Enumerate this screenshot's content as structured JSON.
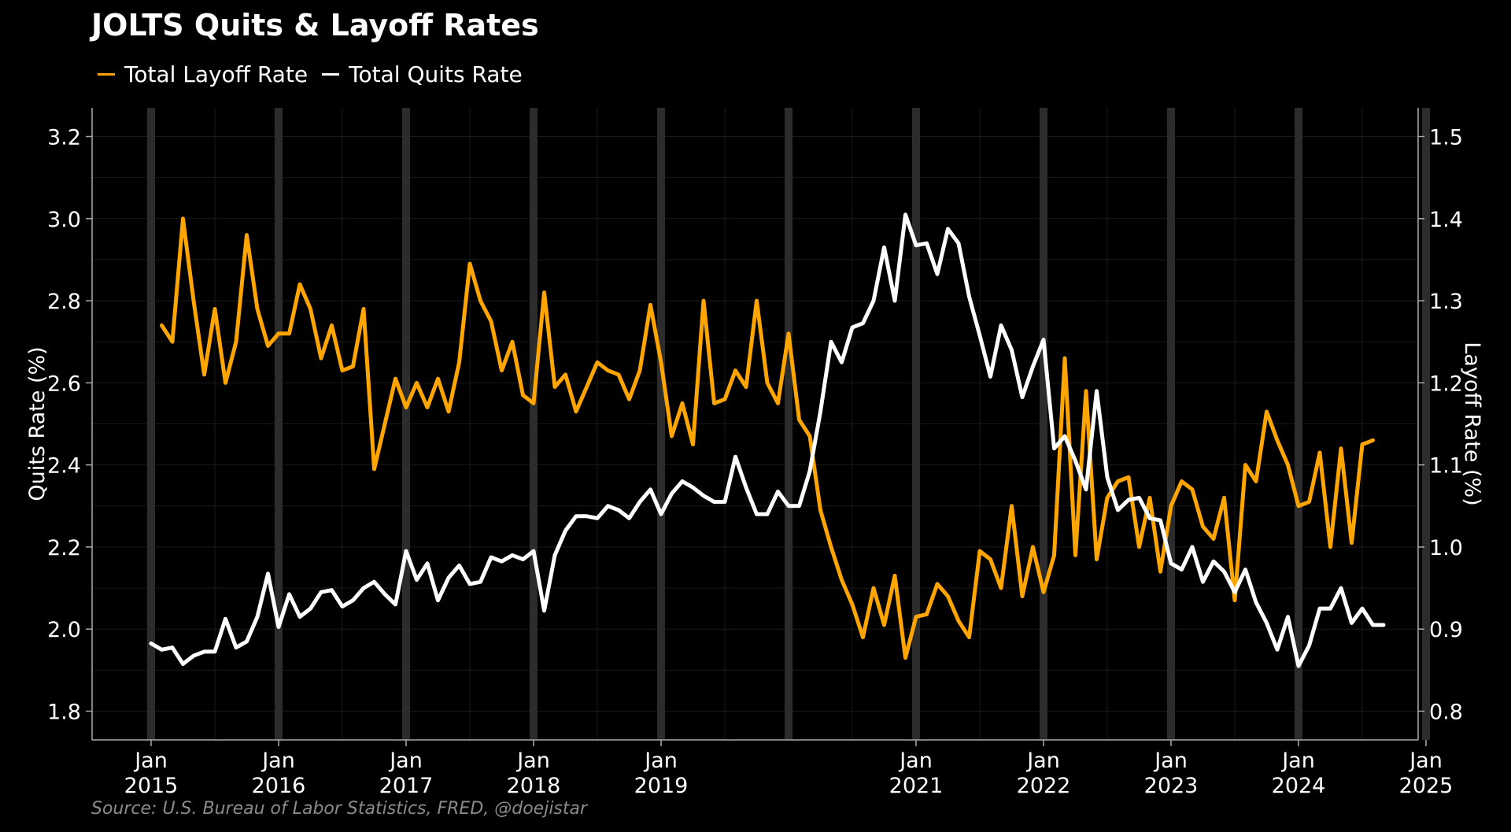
{
  "chart_data": {
    "type": "line",
    "title": "JOLTS Quits & Layoff Rates",
    "source": "Source: U.S. Bureau of Labor Statistics, FRED, @doejistar",
    "y_left_label": "Quits Rate (%)",
    "y_right_label": "Layoff Rate (%)",
    "y_left_lim": [
      1.73,
      3.27
    ],
    "y_right_lim": [
      0.765,
      1.535
    ],
    "y_left_ticks": [
      "1.8",
      "2.0",
      "2.2",
      "2.4",
      "2.6",
      "2.8",
      "3.0",
      "3.2"
    ],
    "y_right_ticks": [
      "0.8",
      "0.9",
      "1.0",
      "1.1",
      "1.2",
      "1.3",
      "1.4",
      "1.5"
    ],
    "x_ticks": [
      {
        "month": "Jan",
        "year": "2015"
      },
      {
        "month": "Jan",
        "year": "2016"
      },
      {
        "month": "Jan",
        "year": "2017"
      },
      {
        "month": "Jan",
        "year": "2018"
      },
      {
        "month": "Jan",
        "year": "2019"
      },
      {
        "month": "Jan",
        "year": "2021"
      },
      {
        "month": "Jan",
        "year": "2022"
      },
      {
        "month": "Jan",
        "year": "2023"
      },
      {
        "month": "Jan",
        "year": "2024"
      },
      {
        "month": "Jan",
        "year": "2025"
      }
    ],
    "legend_position": "top-left",
    "grid": true,
    "series": [
      {
        "name": "Total Layoff Rate",
        "axis": "right",
        "color": "#FFA500",
        "values": [
          1.27,
          1.25,
          1.4,
          1.3,
          1.21,
          1.29,
          1.2,
          1.25,
          1.38,
          1.29,
          1.245,
          1.26,
          1.26,
          1.32,
          1.29,
          1.23,
          1.27,
          1.215,
          1.22,
          1.29,
          1.095,
          1.15,
          1.205,
          1.17,
          1.2,
          1.17,
          1.205,
          1.165,
          1.225,
          1.345,
          1.3,
          1.275,
          1.215,
          1.25,
          1.185,
          1.175,
          1.31,
          1.195,
          1.21,
          1.165,
          1.195,
          1.225,
          1.215,
          1.21,
          1.18,
          1.215,
          1.295,
          1.225,
          1.135,
          1.175,
          1.125,
          1.3,
          1.175,
          1.18,
          1.215,
          1.195,
          1.3,
          1.2,
          1.175,
          1.26,
          1.155,
          1.135,
          1.045,
          1.0,
          0.96,
          0.93,
          0.89,
          0.95,
          0.905,
          0.965,
          0.865,
          0.915,
          0.918,
          0.955,
          0.94,
          0.91,
          0.89,
          0.995,
          0.985,
          0.95,
          1.05,
          0.94,
          1.0,
          0.945,
          0.99,
          1.23,
          0.99,
          1.19,
          0.985,
          1.06,
          1.08,
          1.085,
          1.0,
          1.06,
          0.97,
          1.05,
          1.08,
          1.07,
          1.025,
          1.01,
          1.06,
          0.935,
          1.1,
          1.08,
          1.165,
          1.13,
          1.1,
          1.05,
          1.055,
          1.115,
          1.0,
          1.12,
          1.005,
          1.125,
          1.13
        ],
        "start": "2015-02",
        "frequency": "monthly"
      },
      {
        "name": "Total Quits Rate",
        "axis": "left",
        "color": "#FFFFFF",
        "values": [
          1.965,
          1.95,
          1.955,
          1.915,
          1.935,
          1.945,
          1.945,
          2.025,
          1.955,
          1.97,
          2.03,
          2.135,
          2.005,
          2.085,
          2.03,
          2.05,
          2.09,
          2.095,
          2.055,
          2.07,
          2.1,
          2.115,
          2.085,
          2.06,
          2.19,
          2.12,
          2.16,
          2.07,
          2.125,
          2.155,
          2.11,
          2.115,
          2.175,
          2.165,
          2.18,
          2.17,
          2.19,
          2.045,
          2.18,
          2.24,
          2.275,
          2.275,
          2.27,
          2.3,
          2.29,
          2.27,
          2.31,
          2.34,
          2.28,
          2.33,
          2.36,
          2.345,
          2.325,
          2.31,
          2.31,
          2.42,
          2.345,
          2.28,
          2.28,
          2.335,
          2.3,
          2.3,
          2.385,
          2.53,
          2.7,
          2.65,
          2.735,
          2.745,
          2.8,
          2.93,
          2.8,
          3.01,
          2.935,
          2.94,
          2.865,
          2.975,
          2.94,
          2.81,
          2.715,
          2.615,
          2.74,
          2.68,
          2.565,
          2.64,
          2.705,
          2.44,
          2.47,
          2.41,
          2.34,
          2.58,
          2.37,
          2.29,
          2.315,
          2.32,
          2.27,
          2.265,
          2.16,
          2.145,
          2.2,
          2.115,
          2.165,
          2.14,
          2.09,
          2.145,
          2.065,
          2.015,
          1.95,
          2.03,
          1.91,
          1.96,
          2.05,
          2.05,
          2.1,
          2.015,
          2.05,
          2.01,
          2.01
        ],
        "start": "2015-01",
        "frequency": "monthly"
      }
    ]
  }
}
